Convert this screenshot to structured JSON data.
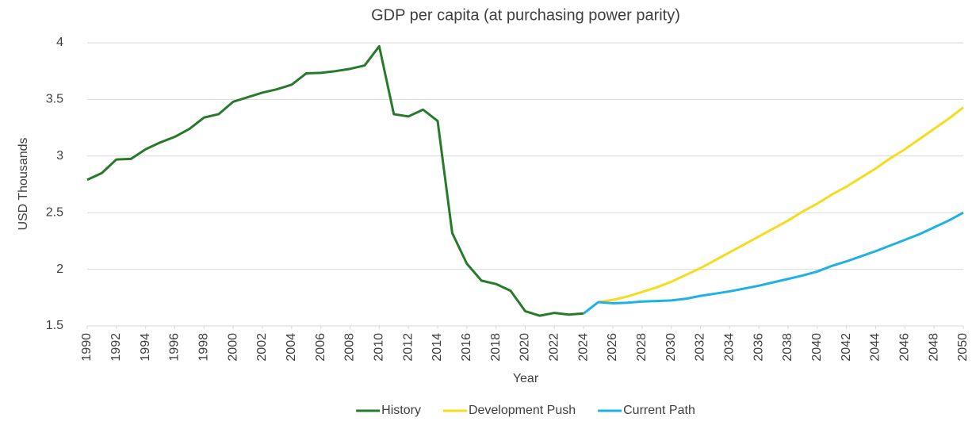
{
  "chart_data": {
    "type": "line",
    "title": "GDP per capita (at purchasing power parity)",
    "x_label": "Year",
    "y_label": "USD Thousands",
    "x": [
      1990,
      1991,
      1992,
      1993,
      1994,
      1995,
      1996,
      1997,
      1998,
      1999,
      2000,
      2001,
      2002,
      2003,
      2004,
      2005,
      2006,
      2007,
      2008,
      2009,
      2010,
      2011,
      2012,
      2013,
      2014,
      2015,
      2016,
      2017,
      2018,
      2019,
      2020,
      2021,
      2022,
      2023,
      2024,
      2025,
      2026,
      2027,
      2028,
      2029,
      2030,
      2031,
      2032,
      2033,
      2034,
      2035,
      2036,
      2037,
      2038,
      2039,
      2040,
      2041,
      2042,
      2043,
      2044,
      2045,
      2046,
      2047,
      2048,
      2049,
      2050
    ],
    "series": [
      {
        "name": "History",
        "color": "#267a2a",
        "values": [
          2.79,
          2.85,
          2.97,
          2.975,
          3.06,
          3.12,
          3.17,
          3.24,
          3.34,
          3.37,
          3.48,
          3.52,
          3.56,
          3.59,
          3.63,
          3.73,
          3.735,
          3.75,
          3.77,
          3.8,
          3.97,
          3.37,
          3.35,
          3.41,
          3.31,
          2.32,
          2.05,
          1.9,
          1.87,
          1.81,
          1.63,
          1.59,
          1.615,
          1.6,
          1.61,
          null,
          null,
          null,
          null,
          null,
          null,
          null,
          null,
          null,
          null,
          null,
          null,
          null,
          null,
          null,
          null,
          null,
          null,
          null,
          null,
          null,
          null,
          null,
          null,
          null,
          null
        ]
      },
      {
        "name": "Development Push",
        "color": "#f5dc1e",
        "values": [
          null,
          null,
          null,
          null,
          null,
          null,
          null,
          null,
          null,
          null,
          null,
          null,
          null,
          null,
          null,
          null,
          null,
          null,
          null,
          null,
          null,
          null,
          null,
          null,
          null,
          null,
          null,
          null,
          null,
          null,
          null,
          null,
          null,
          null,
          null,
          1.71,
          1.73,
          1.76,
          1.8,
          1.84,
          1.89,
          1.95,
          2.01,
          2.08,
          2.15,
          2.22,
          2.29,
          2.36,
          2.43,
          2.51,
          2.58,
          2.66,
          2.73,
          2.81,
          2.89,
          2.98,
          3.06,
          3.15,
          3.24,
          3.33,
          3.43
        ]
      },
      {
        "name": "Current Path",
        "color": "#1fb0e6",
        "values": [
          null,
          null,
          null,
          null,
          null,
          null,
          null,
          null,
          null,
          null,
          null,
          null,
          null,
          null,
          null,
          null,
          null,
          null,
          null,
          null,
          null,
          null,
          null,
          null,
          null,
          null,
          null,
          null,
          null,
          null,
          null,
          null,
          null,
          null,
          1.61,
          1.71,
          1.7,
          1.705,
          1.715,
          1.72,
          1.725,
          1.74,
          1.765,
          1.785,
          1.805,
          1.83,
          1.855,
          1.885,
          1.915,
          1.945,
          1.98,
          2.03,
          2.07,
          2.115,
          2.16,
          2.21,
          2.26,
          2.31,
          2.37,
          2.43,
          2.5
        ]
      }
    ],
    "xlim": [
      1990,
      2050
    ],
    "xticks": [
      1990,
      1992,
      1994,
      1996,
      1998,
      2000,
      2002,
      2004,
      2006,
      2008,
      2010,
      2012,
      2014,
      2016,
      2018,
      2020,
      2022,
      2024,
      2026,
      2028,
      2030,
      2032,
      2034,
      2036,
      2038,
      2040,
      2042,
      2044,
      2046,
      2048,
      2050
    ],
    "ylim": [
      1.5,
      4
    ],
    "yticks": [
      1.5,
      2,
      2.5,
      3,
      3.5,
      4
    ],
    "grid": true,
    "legend": "bottom"
  }
}
